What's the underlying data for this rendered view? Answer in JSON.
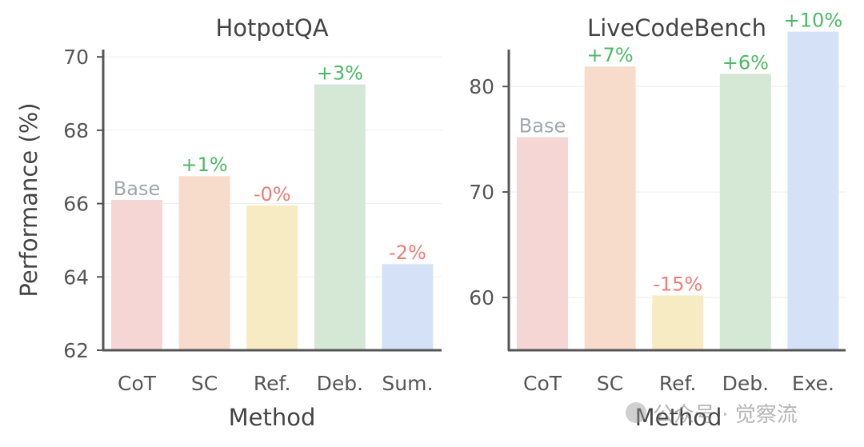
{
  "chart_data": [
    {
      "type": "bar",
      "title": "HotpotQA",
      "xlabel": "Method",
      "ylabel": "Performance (%)",
      "ylim": [
        62,
        70.2
      ],
      "yticks": [
        62,
        64,
        66,
        68,
        70
      ],
      "grid": "horizontal",
      "categories": [
        "CoT",
        "SC",
        "Ref.",
        "Deb.",
        "Sum."
      ],
      "values": [
        66.1,
        66.75,
        65.95,
        69.25,
        64.35
      ],
      "annotations": [
        "Base",
        "+1%",
        "-0%",
        "+3%",
        "-2%"
      ],
      "bar_colors": [
        "#f6d5d5",
        "#f8dccb",
        "#f7ebc4",
        "#d5e8d6",
        "#d5e1f7"
      ],
      "annotation_colors": [
        "#a3a6ad",
        "#4db866",
        "#ef7d77",
        "#4db866",
        "#ef7d77"
      ]
    },
    {
      "type": "bar",
      "title": "LiveCodeBench",
      "xlabel": "Method",
      "ylabel": "",
      "ylim": [
        55,
        83.5
      ],
      "yticks": [
        60,
        70,
        80
      ],
      "grid": "horizontal",
      "categories": [
        "CoT",
        "SC",
        "Ref.",
        "Deb.",
        "Exe."
      ],
      "values": [
        75.2,
        81.9,
        60.2,
        81.2,
        85.2
      ],
      "annotations": [
        "Base",
        "+7%",
        "-15%",
        "+6%",
        "+10%"
      ],
      "bar_colors": [
        "#f6d5d5",
        "#f8dccb",
        "#f7ebc4",
        "#d5e8d6",
        "#d5e1f7"
      ],
      "annotation_colors": [
        "#a3a6ad",
        "#4db866",
        "#ef7d77",
        "#4db866",
        "#4db866"
      ]
    }
  ],
  "watermark": {
    "text": "公众号 · 觉察流",
    "logo_icon": "wechat-logo-icon"
  },
  "style": {
    "axis_color": "#555555",
    "tick_label_color": "#555555",
    "label_color": "#444444",
    "grid_color": "#eeeeee"
  }
}
